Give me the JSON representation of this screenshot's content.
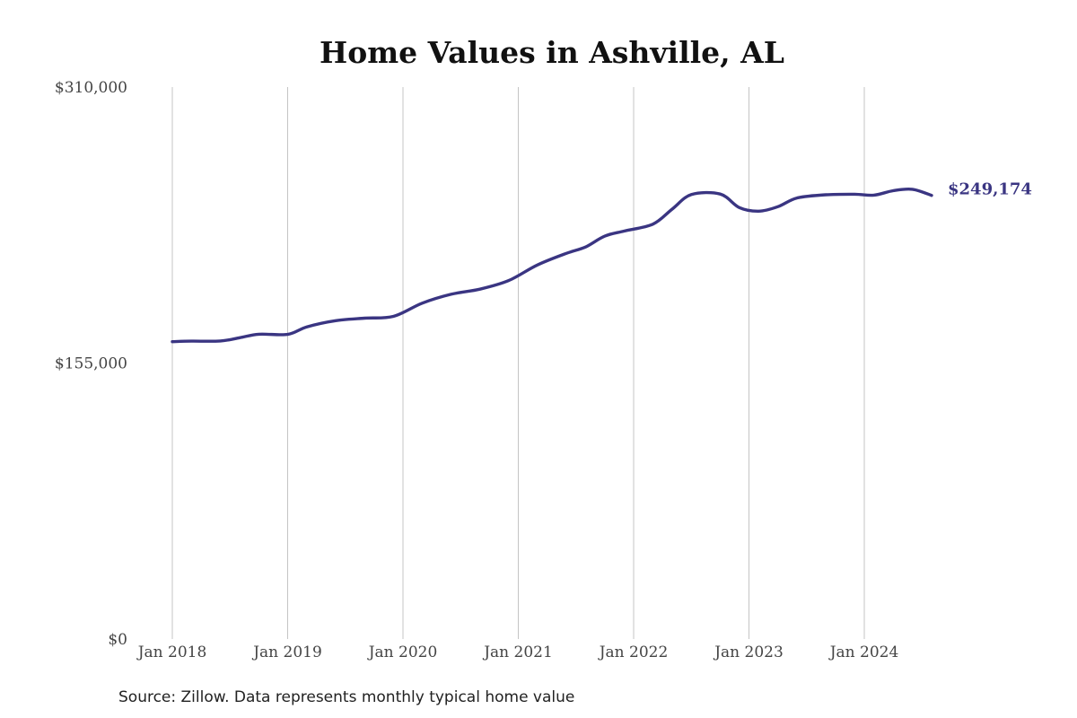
{
  "chart_data": {
    "type": "line",
    "title": "Home Values in Ashville, AL",
    "xlabel": "",
    "ylabel": "",
    "ylim": [
      0,
      310000
    ],
    "y_ticks": [
      {
        "value": 0,
        "label": "$0"
      },
      {
        "value": 155000,
        "label": "$155,000"
      },
      {
        "value": 310000,
        "label": "$310,000"
      }
    ],
    "x_ticks": [
      {
        "value": "2018-01",
        "label": "Jan 2018"
      },
      {
        "value": "2019-01",
        "label": "Jan 2019"
      },
      {
        "value": "2020-01",
        "label": "Jan 2020"
      },
      {
        "value": "2021-01",
        "label": "Jan 2021"
      },
      {
        "value": "2022-01",
        "label": "Jan 2022"
      },
      {
        "value": "2023-01",
        "label": "Jan 2023"
      },
      {
        "value": "2024-01",
        "label": "Jan 2024"
      }
    ],
    "grid": "vertical",
    "color": "#3a3582",
    "end_label": "$249,174",
    "series": [
      {
        "x": [
          "2018-01",
          "2018-03",
          "2018-06",
          "2018-08",
          "2018-10",
          "2019-01",
          "2019-03",
          "2019-06",
          "2019-09",
          "2019-12",
          "2020-03",
          "2020-06",
          "2020-09",
          "2020-12",
          "2021-03",
          "2021-06",
          "2021-08",
          "2021-10",
          "2021-12",
          "2022-03",
          "2022-05",
          "2022-07",
          "2022-10",
          "2022-12",
          "2023-02",
          "2023-04",
          "2023-06",
          "2023-09",
          "2023-12",
          "2024-02",
          "2024-04",
          "2024-06",
          "2024-08"
        ],
        "values": [
          167000,
          167300,
          167400,
          169200,
          171200,
          171100,
          175300,
          178800,
          180200,
          181200,
          188600,
          193600,
          196500,
          201300,
          210100,
          216600,
          220200,
          226300,
          229100,
          233000,
          241400,
          249600,
          249900,
          242300,
          240300,
          242800,
          247700,
          249500,
          249800,
          249300,
          251800,
          252600,
          249174
        ]
      }
    ]
  },
  "footer": {
    "source": "Source: Zillow. Data represents monthly typical home value"
  }
}
